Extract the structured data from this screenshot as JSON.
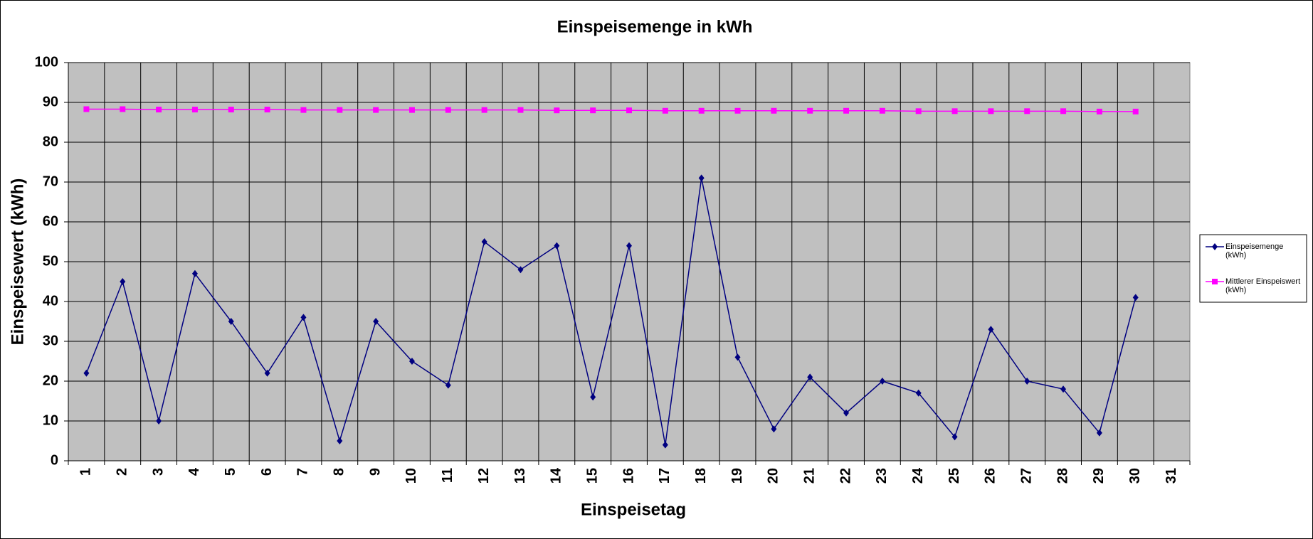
{
  "chart_data": {
    "type": "line",
    "title": "Einspeisemenge in kWh",
    "x_label": "Einspeisetag",
    "y_label": "Einspeisewert  (kWh)",
    "categories": [
      "1",
      "2",
      "3",
      "4",
      "5",
      "6",
      "7",
      "8",
      "9",
      "10",
      "11",
      "12",
      "13",
      "14",
      "15",
      "16",
      "17",
      "18",
      "19",
      "20",
      "21",
      "22",
      "23",
      "24",
      "25",
      "26",
      "27",
      "28",
      "29",
      "30",
      "31"
    ],
    "series": [
      {
        "name": "Einspeisemenge (kWh)",
        "color": "#000080",
        "marker": "diamond",
        "values": [
          22,
          45,
          10,
          47,
          35,
          22,
          36,
          5,
          35,
          25,
          19,
          55,
          48,
          54,
          16,
          54,
          4,
          71,
          26,
          8,
          21,
          12,
          20,
          17,
          6,
          33,
          20,
          18,
          7,
          41,
          null
        ]
      },
      {
        "name": "Mittlerer Einspeiswert (kWh)",
        "color": "#ff00ff",
        "marker": "square",
        "values": [
          88.3,
          88.3,
          88.2,
          88.2,
          88.2,
          88.2,
          88.1,
          88.1,
          88.1,
          88.1,
          88.1,
          88.1,
          88.1,
          88.0,
          88.0,
          88.0,
          87.9,
          87.9,
          87.9,
          87.9,
          87.9,
          87.9,
          87.9,
          87.8,
          87.8,
          87.8,
          87.8,
          87.8,
          87.7,
          87.7,
          null
        ]
      }
    ],
    "ylim": [
      0,
      100
    ],
    "yticks": [
      0,
      10,
      20,
      30,
      40,
      50,
      60,
      70,
      80,
      90,
      100
    ],
    "grid": true,
    "legend": "right",
    "plot_background": "#c0c0c0"
  }
}
